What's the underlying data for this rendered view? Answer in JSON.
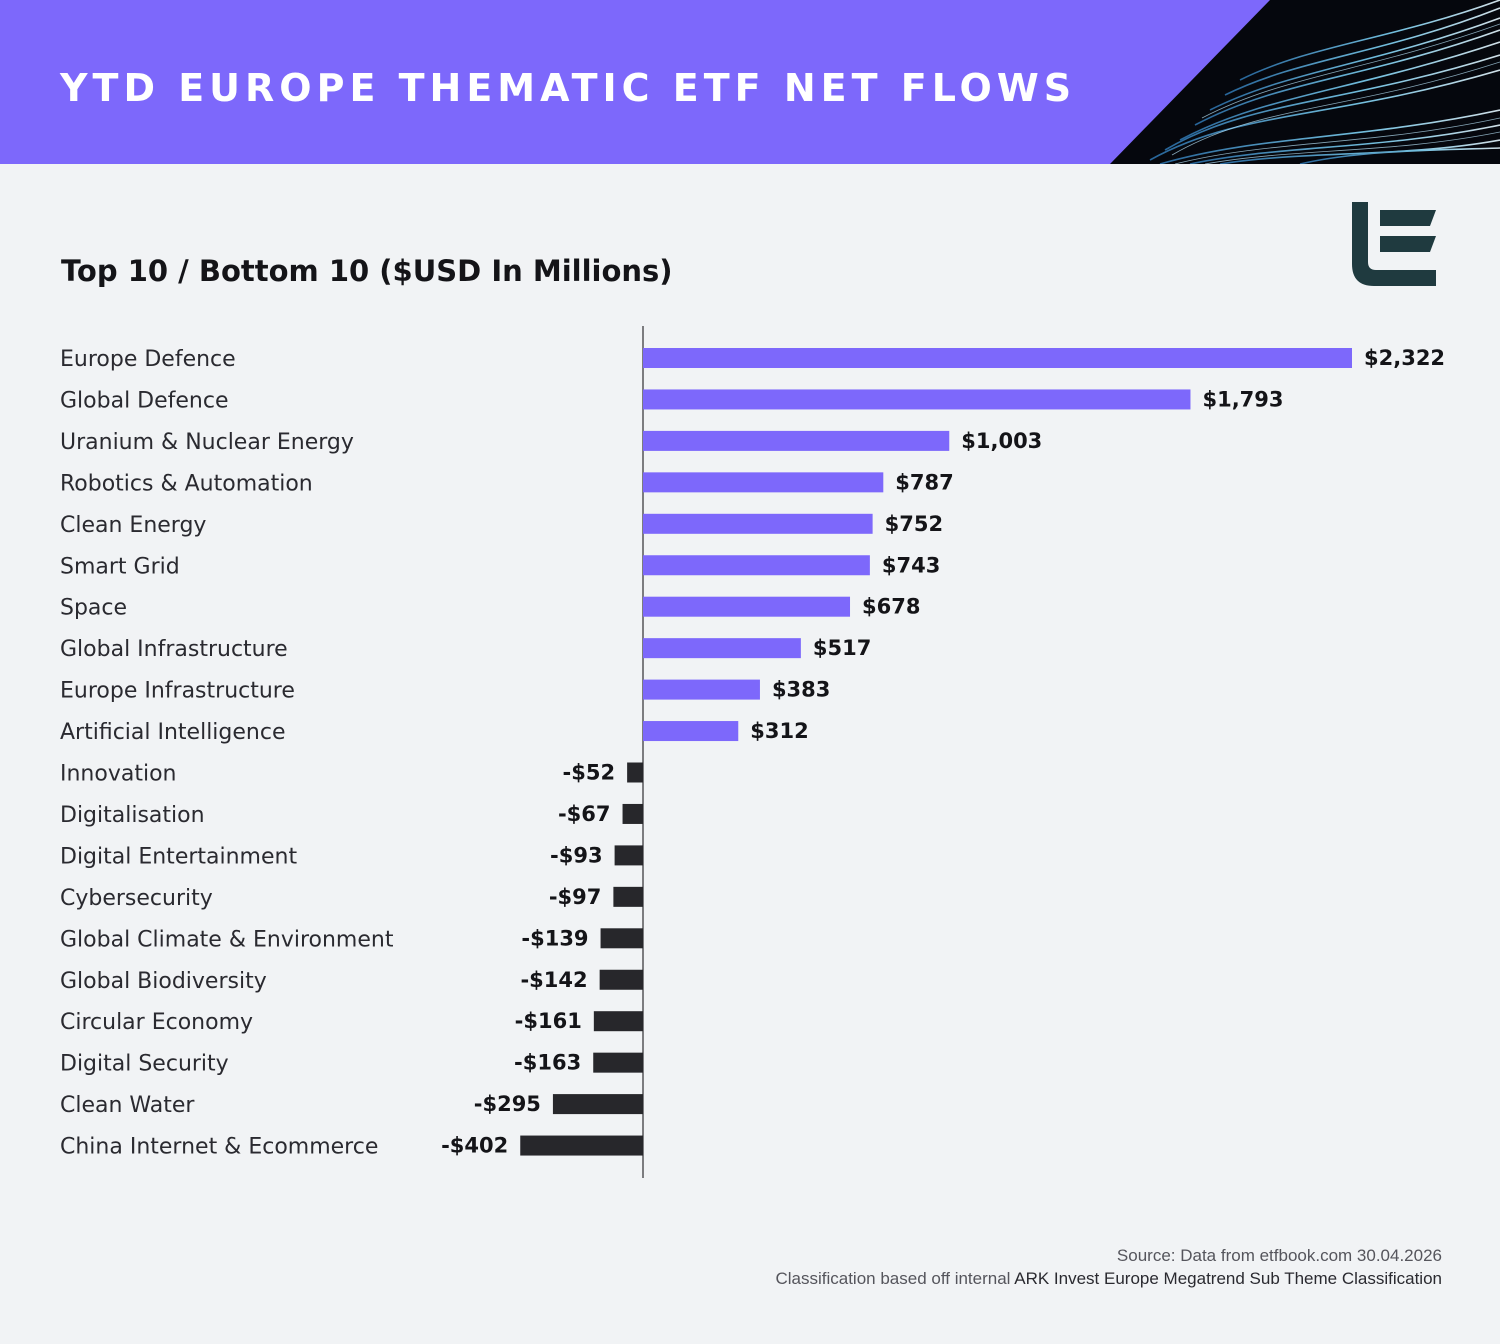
{
  "header": {
    "title": "YTD EUROPE THEMATIC ETF NET FLOWS"
  },
  "logo": {
    "icon": "etfbook-logo-icon",
    "color": "#1f3a3f"
  },
  "colors": {
    "banner": "#7d68fb",
    "positive": "#7d68fb",
    "negative": "#27272b",
    "background": "#f1f3f5"
  },
  "chart_data": {
    "type": "bar",
    "orientation": "horizontal",
    "title": "Top 10 / Bottom 10 ($USD In Millions)",
    "categories": [
      "Europe Defence",
      "Global Defence",
      "Uranium & Nuclear Energy",
      "Robotics & Automation",
      "Clean Energy",
      "Smart Grid",
      "Space",
      "Global Infrastructure",
      "Europe Infrastructure",
      "Artificial Intelligence",
      "Innovation",
      "Digitalisation",
      "Digital Entertainment",
      "Cybersecurity",
      "Global Climate & Environment",
      "Global Biodiversity",
      "Circular Economy",
      "Digital Security",
      "Clean Water",
      "China Internet & Ecommerce"
    ],
    "values": [
      2322,
      1793,
      1003,
      787,
      752,
      743,
      678,
      517,
      383,
      312,
      -52,
      -67,
      -93,
      -97,
      -139,
      -142,
      -161,
      -163,
      -295,
      -402
    ],
    "labels": [
      "$2,322",
      "$1,793",
      "$1,003",
      "$787",
      "$752",
      "$743",
      "$678",
      "$517",
      "$383",
      "$312",
      "-$52",
      "-$67",
      "-$93",
      "-$97",
      "-$139",
      "-$142",
      "-$161",
      "-$163",
      "-$295",
      "-$402"
    ],
    "xlim": [
      -402,
      2322
    ],
    "grid": false,
    "legend": "none"
  },
  "footer": {
    "source": "Source: Data from etfbook.com 30.04.2026",
    "classification_prefix": "Classification based off internal ",
    "classification_emphasis": "ARK Invest Europe Megatrend Sub Theme Classification"
  }
}
